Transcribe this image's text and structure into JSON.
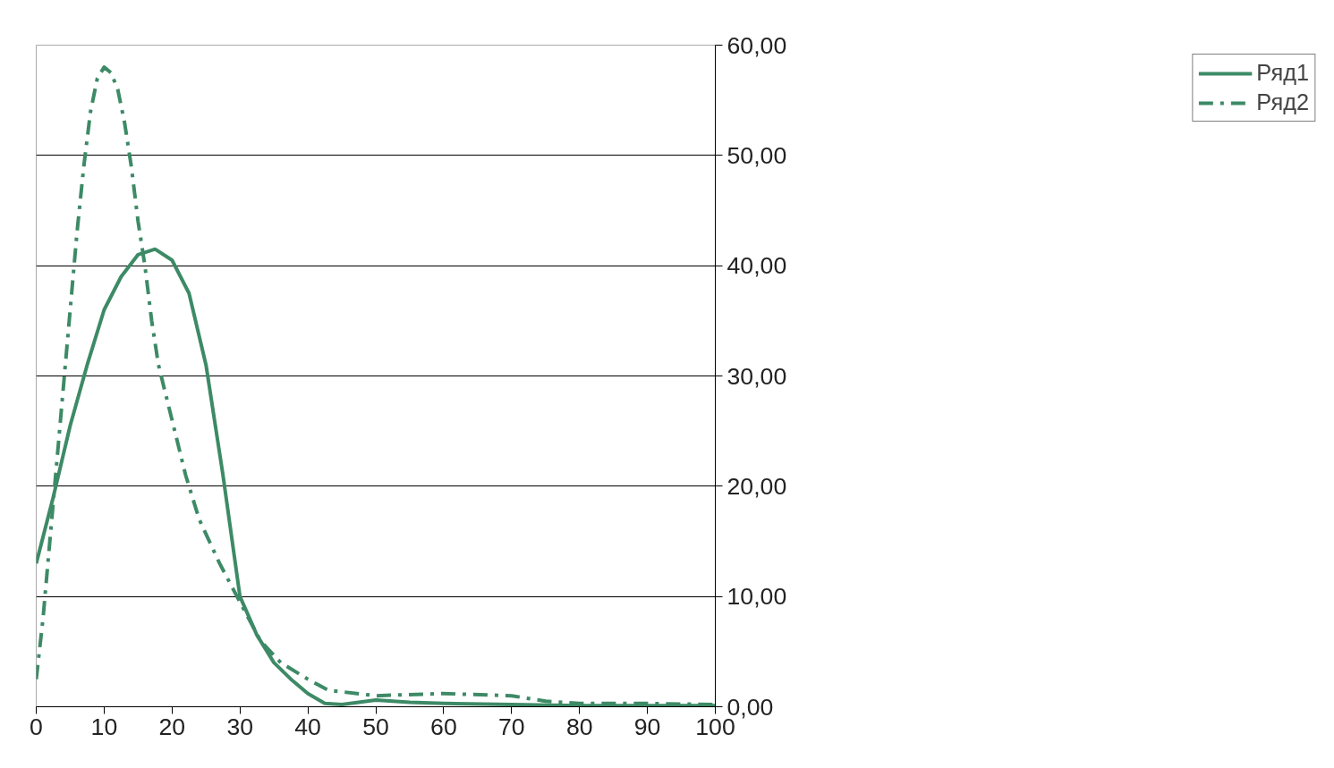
{
  "chart_data": {
    "type": "line",
    "xlim": [
      0,
      100
    ],
    "xticks": [
      0,
      10,
      20,
      30,
      40,
      50,
      60,
      70,
      80,
      90,
      100
    ],
    "ylim": [
      0,
      60
    ],
    "yticks": [
      {
        "value": 0,
        "label": "0,00"
      },
      {
        "value": 10,
        "label": "10,00"
      },
      {
        "value": 20,
        "label": "20,00"
      },
      {
        "value": 30,
        "label": "30,00"
      },
      {
        "value": 40,
        "label": "40,00"
      },
      {
        "value": 50,
        "label": "50,00"
      },
      {
        "value": 60,
        "label": "60,00"
      }
    ],
    "grid": "y",
    "legend": "right",
    "marker": "none",
    "series": [
      {
        "name": "Ряд1",
        "color": "#3d8a66",
        "line_style": "solid",
        "x": [
          0,
          2.5,
          5,
          7.5,
          10,
          12.5,
          15,
          17.5,
          20,
          22.5,
          25,
          27.5,
          30,
          32.5,
          35,
          37.5,
          40,
          42.5,
          45,
          50,
          55,
          60,
          70,
          80,
          90,
          100
        ],
        "values": [
          13,
          19,
          25.5,
          31,
          36,
          39,
          41,
          41.5,
          40.5,
          37.5,
          31,
          21,
          10,
          6.5,
          4,
          2.5,
          1.2,
          0.3,
          0.2,
          0.6,
          0.4,
          0.3,
          0.2,
          0.1,
          0.1,
          0.1
        ]
      },
      {
        "name": "Ряд2",
        "color": "#3d8a66",
        "line_style": "dashed",
        "x": [
          0,
          1,
          2,
          3,
          4,
          5,
          6,
          7,
          8,
          9,
          10,
          11,
          12,
          13,
          14,
          15,
          16,
          17,
          18,
          20,
          22,
          24,
          27,
          30,
          33,
          36,
          40,
          43,
          50,
          60,
          70,
          75,
          80,
          90,
          100
        ],
        "values": [
          2.5,
          8,
          15,
          22,
          29,
          36,
          43,
          49,
          54,
          57,
          58,
          57.5,
          56,
          53,
          49,
          44,
          40,
          35,
          31,
          26,
          21,
          17,
          13,
          9.5,
          6,
          4,
          2.5,
          1.5,
          1,
          1.2,
          1,
          0.5,
          0.3,
          0.3,
          0.2
        ]
      }
    ]
  }
}
